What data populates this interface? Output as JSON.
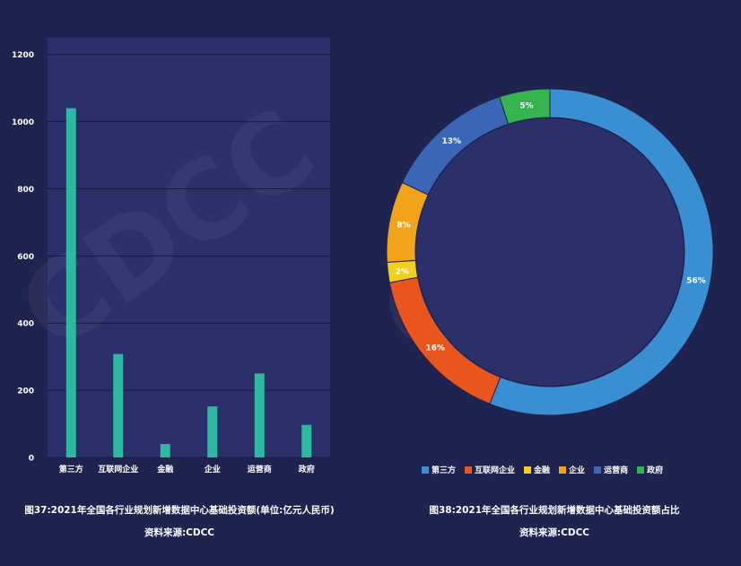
{
  "chart_data": [
    {
      "type": "bar",
      "categories": [
        "第三方",
        "互联网企业",
        "金融",
        "企业",
        "运营商",
        "政府"
      ],
      "values": [
        1040,
        308,
        40,
        152,
        250,
        97
      ],
      "ylim": [
        0,
        1250
      ],
      "yticks": [
        0,
        200,
        400,
        600,
        800,
        1000,
        1200
      ],
      "grid": true,
      "color": "#2db8a0",
      "plot_background": "#2b2f6a",
      "caption": "图37:2021年全国各行业规划新增数据中心基础投资额(单位:亿元人民币)",
      "source": "资料来源:CDCC"
    },
    {
      "type": "pie",
      "donut": true,
      "labels": [
        "第三方",
        "互联网企业",
        "金融",
        "企业",
        "运营商",
        "政府"
      ],
      "values": [
        56,
        16,
        2,
        8,
        13,
        5
      ],
      "value_labels": [
        "56%",
        "16%",
        "2%",
        "8%",
        "13%",
        "5%"
      ],
      "colors": [
        "#3a8fd2",
        "#e8561e",
        "#f2cf1c",
        "#f1a41a",
        "#3b66b5",
        "#35b450"
      ],
      "legend_position": "bottom",
      "caption": "图38:2021年全国各行业规划新增数据中心基础投资额占比",
      "source": "资料来源:CDCC"
    }
  ],
  "watermark": "CDCC"
}
